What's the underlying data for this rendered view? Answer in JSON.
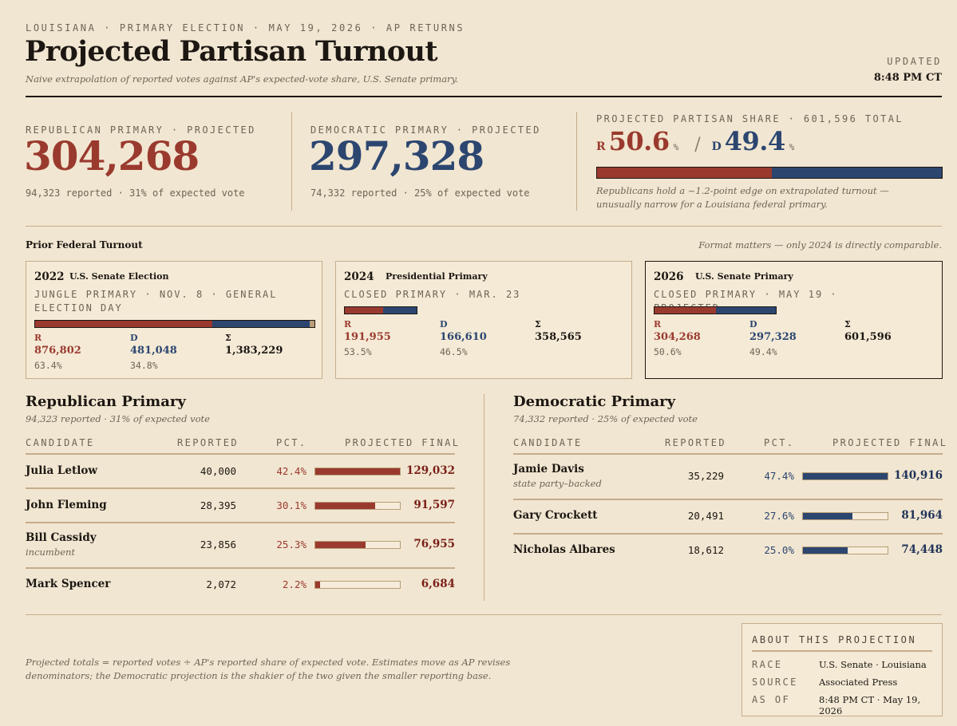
{
  "header": {
    "kicker": "LOUISIANA · PRIMARY ELECTION · MAY 19, 2026 · AP RETURNS",
    "title": "Projected Partisan Turnout",
    "subtitle": "Naive extrapolation of reported votes against AP's expected-vote share, U.S. Senate primary.",
    "updated_label": "UPDATED",
    "updated_time": "8:48 PM CT"
  },
  "projection": {
    "rep_label": "REPUBLICAN PRIMARY · PROJECTED",
    "rep_value": "304,268",
    "rep_sub": "94,323 reported · 31% of expected vote",
    "dem_label": "DEMOCRATIC PRIMARY · PROJECTED",
    "dem_value": "297,328",
    "dem_sub": "74,332 reported · 25% of expected vote",
    "share_label": "PROJECTED PARTISAN SHARE · 601,596 TOTAL",
    "r_prefix": "R",
    "r_share": "50.6",
    "d_prefix": "D",
    "d_share": "49.4",
    "pct_sign": "%",
    "slash": "/",
    "r_fraction": 0.506,
    "share_note": "Republicans hold a ~1.2-point edge on extrapolated turnout — unusually narrow for a Louisiana federal primary."
  },
  "prior": {
    "title": "Prior Federal Turnout",
    "note": "Format matters — only 2024 is directly comparable.",
    "r_head": "R",
    "d_head": "D",
    "sum_head": "Σ",
    "cards": [
      {
        "year": "2022",
        "type": "U.S. Senate Election",
        "desc": "JUNGLE PRIMARY · NOV. 8 · GENERAL ELECTION DAY",
        "r_frac": 0.634,
        "d_frac": 0.348,
        "r_votes": "876,802",
        "r_pct": "63.4%",
        "d_votes": "481,048",
        "d_pct": "34.8%",
        "total": "1,383,229"
      },
      {
        "year": "2024",
        "type": "Presidential Primary",
        "desc": "CLOSED PRIMARY · MAR. 23",
        "r_frac": 0.535,
        "d_frac": 0.465,
        "r_votes": "191,955",
        "r_pct": "53.5%",
        "d_votes": "166,610",
        "d_pct": "46.5%",
        "total": "358,565"
      },
      {
        "year": "2026",
        "type": "U.S. Senate Primary",
        "desc": "CLOSED PRIMARY · MAY 19 · PROJECTED",
        "r_frac": 0.506,
        "d_frac": 0.494,
        "r_votes": "304,268",
        "r_pct": "50.6%",
        "d_votes": "297,328",
        "d_pct": "49.4%",
        "total": "601,596"
      }
    ]
  },
  "columns": {
    "candidate": "CANDIDATE",
    "reported": "REPORTED",
    "pct": "PCT.",
    "projected": "PROJECTED FINAL"
  },
  "rep_primary": {
    "title": "Republican Primary",
    "sub": "94,323 reported · 31% of expected vote",
    "rows": [
      {
        "name": "Julia Letlow",
        "note": "",
        "reported": "40,000",
        "pct": "42.4%",
        "share": 1.0,
        "projected": "129,032"
      },
      {
        "name": "John Fleming",
        "note": "",
        "reported": "28,395",
        "pct": "30.1%",
        "share": 0.71,
        "projected": "91,597"
      },
      {
        "name": "Bill Cassidy",
        "note": "incumbent",
        "reported": "23,856",
        "pct": "25.3%",
        "share": 0.597,
        "projected": "76,955"
      },
      {
        "name": "Mark Spencer",
        "note": "",
        "reported": "2,072",
        "pct": "2.2%",
        "share": 0.052,
        "projected": "6,684"
      }
    ]
  },
  "dem_primary": {
    "title": "Democratic Primary",
    "sub": "74,332 reported · 25% of expected vote",
    "rows": [
      {
        "name": "Jamie Davis",
        "note": "state party–backed",
        "reported": "35,229",
        "pct": "47.4%",
        "share": 1.0,
        "projected": "140,916"
      },
      {
        "name": "Gary Crockett",
        "note": "",
        "reported": "20,491",
        "pct": "27.6%",
        "share": 0.582,
        "projected": "81,964"
      },
      {
        "name": "Nicholas Albares",
        "note": "",
        "reported": "18,612",
        "pct": "25.0%",
        "share": 0.527,
        "projected": "74,448"
      }
    ]
  },
  "footer": {
    "note": "Projected totals = reported votes ÷ AP's reported share of expected vote. Estimates move as AP revises denominators; the Democratic projection is the shakier of the two given the smaller reporting base.",
    "about_title": "ABOUT THIS PROJECTION",
    "race_label": "RACE",
    "race_value": "U.S. Senate · Louisiana",
    "source_label": "SOURCE",
    "source_value": "Associated Press",
    "asof_label": "AS OF",
    "asof_value": "8:48 PM CT · May 19, 2026"
  },
  "colors": {
    "rep": "#9a3a2e",
    "dem": "#2c4670",
    "other": "#b89e78",
    "background": "#f1e6d1"
  }
}
